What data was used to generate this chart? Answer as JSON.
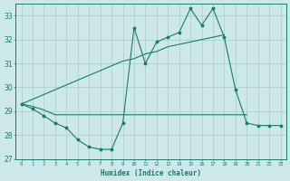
{
  "x": [
    0,
    1,
    2,
    3,
    4,
    5,
    6,
    7,
    8,
    9,
    10,
    11,
    12,
    13,
    14,
    15,
    16,
    17,
    18,
    19,
    20,
    21,
    22,
    23
  ],
  "series_jagged": [
    29.3,
    29.1,
    28.8,
    28.5,
    28.3,
    27.8,
    27.5,
    27.4,
    27.4,
    28.5,
    32.5,
    31.0,
    31.9,
    32.1,
    32.3,
    33.3,
    32.6,
    33.3,
    32.1,
    29.9,
    28.5,
    28.4,
    28.4,
    28.4
  ],
  "series_upper": [
    29.3,
    29.5,
    29.7,
    29.9,
    30.1,
    30.3,
    30.5,
    30.7,
    30.9,
    31.1,
    31.2,
    31.4,
    31.5,
    31.7,
    31.8,
    31.9,
    32.0,
    32.1,
    32.2,
    null,
    null,
    null,
    null,
    null
  ],
  "series_lower": [
    29.3,
    29.2,
    29.05,
    28.85,
    28.85,
    28.85,
    28.85,
    28.85,
    28.85,
    28.85,
    28.85,
    28.85,
    28.85,
    28.85,
    28.85,
    28.85,
    28.85,
    28.85,
    28.85,
    28.85,
    28.85,
    null,
    null,
    null
  ],
  "color": "#1a7a6e",
  "bg_color": "#cce8e8",
  "grid_color": "#aacccc",
  "xlim": [
    -0.5,
    23.5
  ],
  "ylim": [
    27,
    33.5
  ],
  "yticks": [
    27,
    28,
    29,
    30,
    31,
    32,
    33
  ],
  "xlabel": "Humidex (Indice chaleur)"
}
